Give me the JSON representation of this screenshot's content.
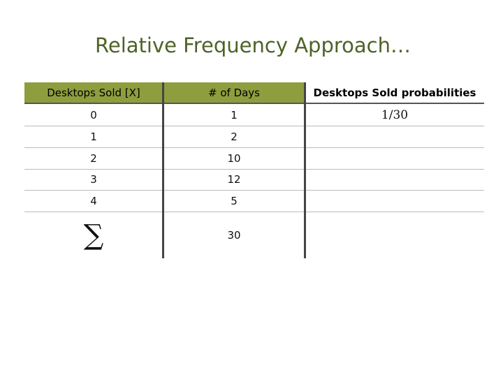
{
  "title": "Relative Frequency Approach…",
  "table": {
    "headers": [
      "Desktops Sold [X]",
      "# of Days",
      "Desktops Sold probabilities"
    ],
    "rows": [
      [
        "0",
        "1",
        "1/30"
      ],
      [
        "1",
        "2"
      ],
      [
        "2",
        "10"
      ],
      [
        "3",
        "12"
      ],
      [
        "4",
        "5"
      ]
    ],
    "total": [
      "∑",
      "30"
    ]
  }
}
